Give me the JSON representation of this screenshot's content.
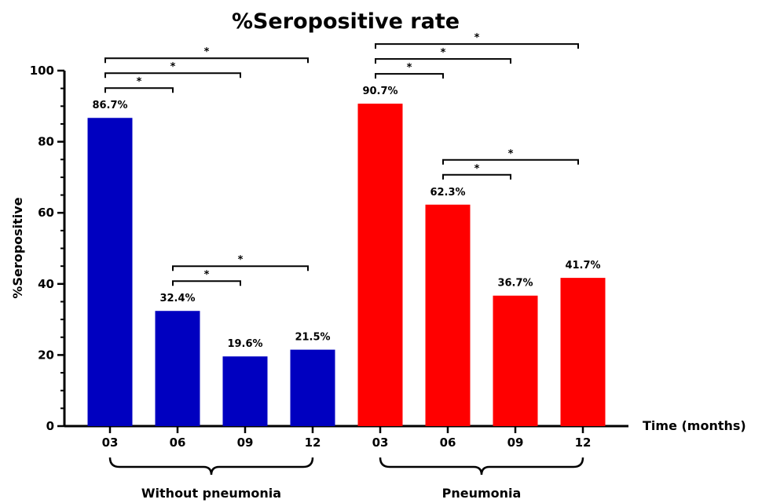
{
  "chart_data": {
    "type": "bar",
    "title": "%Seropositive rate",
    "ylabel": "%Seropositive",
    "xlabel": "Time (months)",
    "ylim": [
      0,
      100
    ],
    "yticks": [
      0,
      20,
      40,
      60,
      80,
      100
    ],
    "grid": false,
    "groups": [
      {
        "name": "Without pneumonia",
        "color": "#0000c0",
        "categories": [
          "03",
          "06",
          "09",
          "12"
        ],
        "values": [
          86.7,
          32.4,
          19.6,
          21.5
        ],
        "labels": [
          "86.7%",
          "32.4%",
          "19.6%",
          "21.5%"
        ],
        "comparisons": [
          {
            "from": 0,
            "to": 1,
            "mark": "*"
          },
          {
            "from": 0,
            "to": 2,
            "mark": "*"
          },
          {
            "from": 0,
            "to": 3,
            "mark": "*"
          },
          {
            "from": 1,
            "to": 2,
            "mark": "*"
          },
          {
            "from": 1,
            "to": 3,
            "mark": "*"
          }
        ]
      },
      {
        "name": "Pneumonia",
        "color": "#ff0000",
        "categories": [
          "03",
          "06",
          "09",
          "12"
        ],
        "values": [
          90.7,
          62.3,
          36.7,
          41.7
        ],
        "labels": [
          "90.7%",
          "62.3%",
          "36.7%",
          "41.7%"
        ],
        "comparisons": [
          {
            "from": 0,
            "to": 1,
            "mark": "*"
          },
          {
            "from": 0,
            "to": 2,
            "mark": "*"
          },
          {
            "from": 0,
            "to": 3,
            "mark": "*"
          },
          {
            "from": 1,
            "to": 2,
            "mark": "*"
          },
          {
            "from": 1,
            "to": 3,
            "mark": "*"
          }
        ]
      }
    ]
  }
}
